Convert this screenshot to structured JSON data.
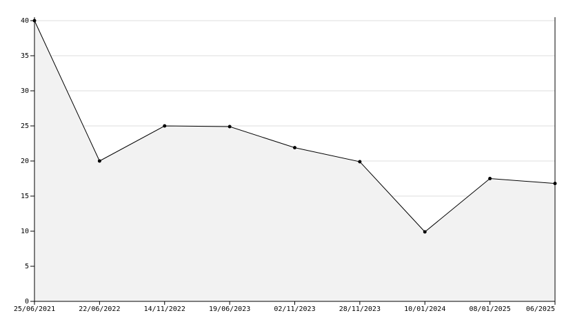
{
  "chart_data": {
    "type": "area",
    "categories": [
      "25/06/2021",
      "22/06/2022",
      "14/11/2022",
      "19/06/2023",
      "02/11/2023",
      "28/11/2023",
      "10/01/2024",
      "08/01/2025",
      "06/2025"
    ],
    "values": [
      40,
      20,
      25,
      24.9,
      21.9,
      19.9,
      9.9,
      17.5,
      16.8
    ],
    "color": "#000000",
    "fill": "#f2f2f2",
    "ylim": [
      0,
      40
    ],
    "yticks": [
      0,
      5,
      10,
      15,
      20,
      25,
      30,
      35,
      40
    ],
    "grid": true
  }
}
